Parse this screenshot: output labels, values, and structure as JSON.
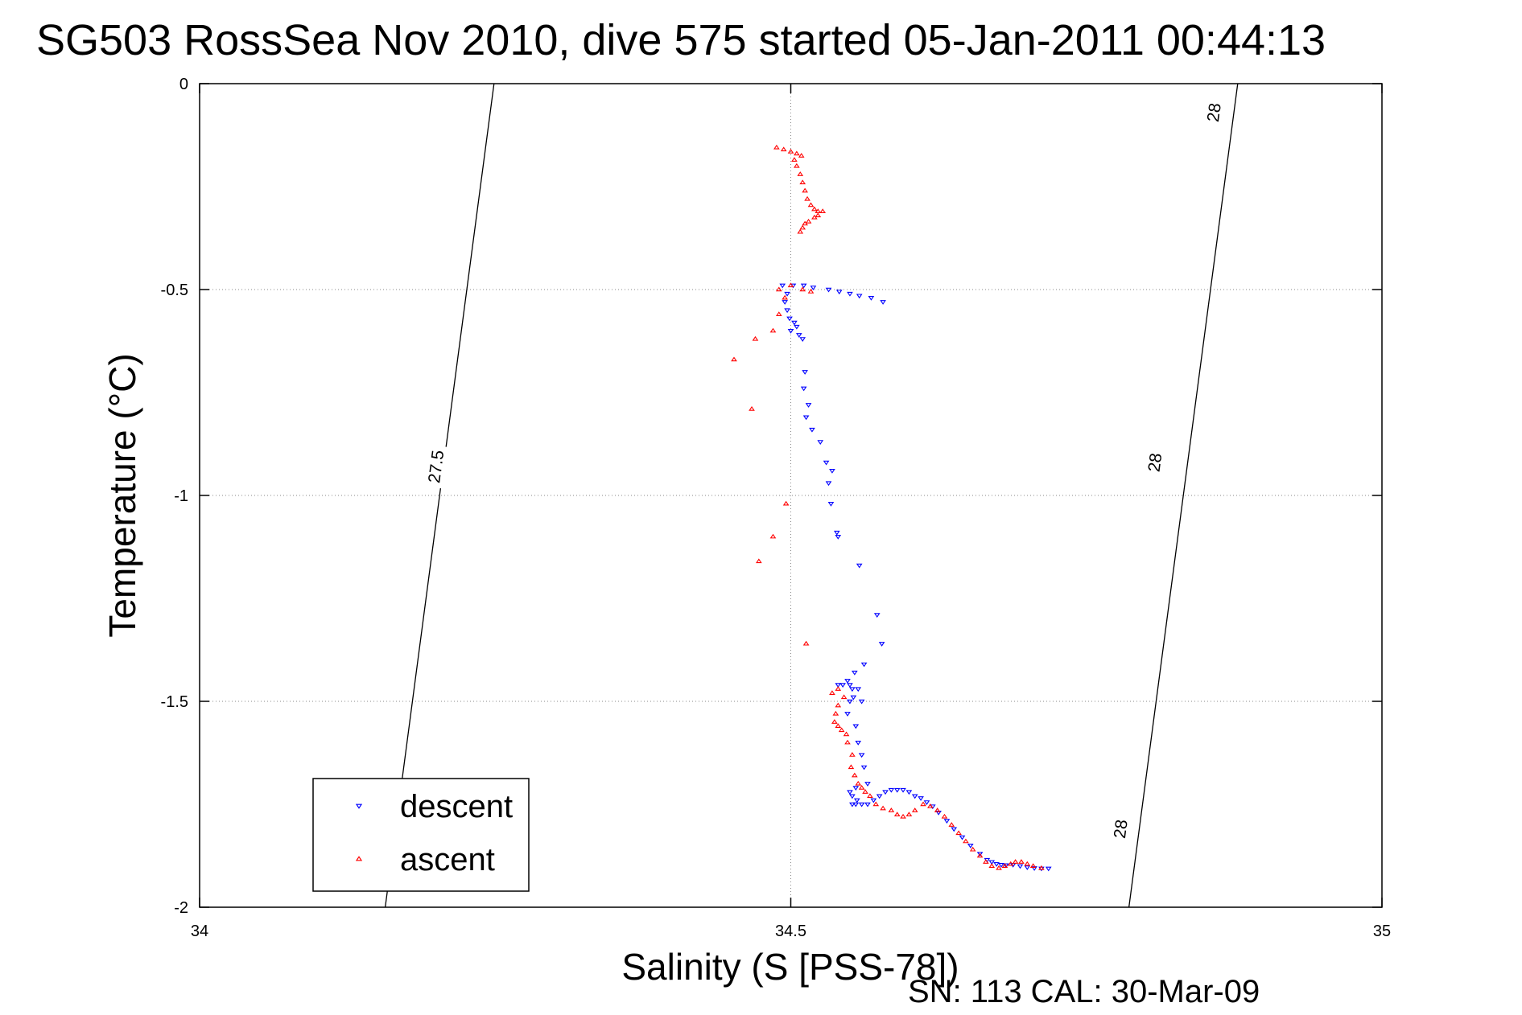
{
  "chart_data": {
    "type": "scatter",
    "title": "SG503 RossSea Nov 2010, dive 575 started 05-Jan-2011 00:44:13",
    "xlabel": "Salinity (S [PSS-78])",
    "ylabel": "Temperature (°C)",
    "xlim": [
      34,
      35
    ],
    "ylim": [
      -2,
      0
    ],
    "x_ticks": [
      "34",
      "34.5",
      "35"
    ],
    "y_ticks": [
      "0",
      "-0.5",
      "-1",
      "-1.5",
      "-2"
    ],
    "grid": true,
    "legend_position": "bottom-left",
    "isopycnals": [
      {
        "label": "27.5",
        "points": [
          [
            34.157,
            -2.0
          ],
          [
            34.249,
            0.0
          ]
        ],
        "label_at": [
          34.2,
          -0.93
        ]
      },
      {
        "label": "28",
        "points": [
          [
            34.786,
            -2.0
          ],
          [
            34.878,
            0.0
          ]
        ],
        "label_positions": [
          [
            34.858,
            -0.07
          ],
          [
            34.808,
            -0.92
          ],
          [
            34.779,
            -1.81
          ]
        ]
      }
    ],
    "series": [
      {
        "name": "descent",
        "color": "#0000ff",
        "marker": "triangle-down",
        "points": [
          [
            34.493,
            -0.49
          ],
          [
            34.502,
            -0.49
          ],
          [
            34.511,
            -0.49
          ],
          [
            34.519,
            -0.495
          ],
          [
            34.532,
            -0.5
          ],
          [
            34.541,
            -0.505
          ],
          [
            34.55,
            -0.51
          ],
          [
            34.558,
            -0.515
          ],
          [
            34.568,
            -0.52
          ],
          [
            34.578,
            -0.53
          ],
          [
            34.497,
            -0.51
          ],
          [
            34.495,
            -0.53
          ],
          [
            34.497,
            -0.55
          ],
          [
            34.499,
            -0.57
          ],
          [
            34.503,
            -0.58
          ],
          [
            34.505,
            -0.59
          ],
          [
            34.507,
            -0.61
          ],
          [
            34.51,
            -0.62
          ],
          [
            34.5,
            -0.6
          ],
          [
            34.512,
            -0.7
          ],
          [
            34.511,
            -0.74
          ],
          [
            34.515,
            -0.78
          ],
          [
            34.513,
            -0.81
          ],
          [
            34.518,
            -0.84
          ],
          [
            34.525,
            -0.87
          ],
          [
            34.53,
            -0.92
          ],
          [
            34.535,
            -0.94
          ],
          [
            34.532,
            -0.97
          ],
          [
            34.534,
            -1.02
          ],
          [
            34.539,
            -1.09
          ],
          [
            34.54,
            -1.1
          ],
          [
            34.558,
            -1.17
          ],
          [
            34.573,
            -1.29
          ],
          [
            34.577,
            -1.36
          ],
          [
            34.562,
            -1.41
          ],
          [
            34.554,
            -1.43
          ],
          [
            34.548,
            -1.45
          ],
          [
            34.55,
            -1.46
          ],
          [
            34.552,
            -1.47
          ],
          [
            34.54,
            -1.46
          ],
          [
            34.544,
            -1.46
          ],
          [
            34.557,
            -1.47
          ],
          [
            34.553,
            -1.49
          ],
          [
            34.55,
            -1.5
          ],
          [
            34.56,
            -1.5
          ],
          [
            34.548,
            -1.53
          ],
          [
            34.555,
            -1.56
          ],
          [
            34.557,
            -1.6
          ],
          [
            34.56,
            -1.63
          ],
          [
            34.562,
            -1.66
          ],
          [
            34.565,
            -1.7
          ],
          [
            34.555,
            -1.71
          ],
          [
            34.55,
            -1.72
          ],
          [
            34.552,
            -1.73
          ],
          [
            34.556,
            -1.74
          ],
          [
            34.552,
            -1.75
          ],
          [
            34.555,
            -1.75
          ],
          [
            34.56,
            -1.75
          ],
          [
            34.565,
            -1.75
          ],
          [
            34.57,
            -1.74
          ],
          [
            34.575,
            -1.73
          ],
          [
            34.58,
            -1.72
          ],
          [
            34.585,
            -1.715
          ],
          [
            34.59,
            -1.715
          ],
          [
            34.595,
            -1.715
          ],
          [
            34.6,
            -1.72
          ],
          [
            34.605,
            -1.73
          ],
          [
            34.61,
            -1.735
          ],
          [
            34.615,
            -1.745
          ],
          [
            34.62,
            -1.755
          ],
          [
            34.625,
            -1.77
          ],
          [
            34.632,
            -1.79
          ],
          [
            34.638,
            -1.81
          ],
          [
            34.645,
            -1.83
          ],
          [
            34.652,
            -1.85
          ],
          [
            34.66,
            -1.87
          ],
          [
            34.666,
            -1.885
          ],
          [
            34.67,
            -1.89
          ],
          [
            34.674,
            -1.895
          ],
          [
            34.678,
            -1.897
          ],
          [
            34.682,
            -1.898
          ],
          [
            34.688,
            -1.897
          ],
          [
            34.694,
            -1.9
          ],
          [
            34.7,
            -1.903
          ],
          [
            34.706,
            -1.905
          ],
          [
            34.712,
            -1.906
          ],
          [
            34.718,
            -1.906
          ]
        ]
      },
      {
        "name": "ascent",
        "color": "#ff0000",
        "marker": "triangle-up",
        "points": [
          [
            34.488,
            -0.155
          ],
          [
            34.494,
            -0.16
          ],
          [
            34.5,
            -0.165
          ],
          [
            34.505,
            -0.17
          ],
          [
            34.509,
            -0.175
          ],
          [
            34.503,
            -0.185
          ],
          [
            34.505,
            -0.2
          ],
          [
            34.508,
            -0.22
          ],
          [
            34.51,
            -0.24
          ],
          [
            34.512,
            -0.26
          ],
          [
            34.514,
            -0.28
          ],
          [
            34.517,
            -0.295
          ],
          [
            34.52,
            -0.305
          ],
          [
            34.523,
            -0.31
          ],
          [
            34.527,
            -0.31
          ],
          [
            34.523,
            -0.32
          ],
          [
            34.52,
            -0.325
          ],
          [
            34.515,
            -0.335
          ],
          [
            34.512,
            -0.34
          ],
          [
            34.51,
            -0.35
          ],
          [
            34.508,
            -0.36
          ],
          [
            34.5,
            -0.49
          ],
          [
            34.51,
            -0.5
          ],
          [
            34.517,
            -0.505
          ],
          [
            34.49,
            -0.5
          ],
          [
            34.495,
            -0.52
          ],
          [
            34.49,
            -0.56
          ],
          [
            34.485,
            -0.6
          ],
          [
            34.47,
            -0.62
          ],
          [
            34.452,
            -0.67
          ],
          [
            34.467,
            -0.79
          ],
          [
            34.496,
            -1.02
          ],
          [
            34.485,
            -1.1
          ],
          [
            34.473,
            -1.16
          ],
          [
            34.513,
            -1.36
          ],
          [
            34.535,
            -1.48
          ],
          [
            34.54,
            -1.47
          ],
          [
            34.545,
            -1.49
          ],
          [
            34.54,
            -1.51
          ],
          [
            34.538,
            -1.53
          ],
          [
            34.537,
            -1.55
          ],
          [
            34.54,
            -1.56
          ],
          [
            34.543,
            -1.57
          ],
          [
            34.547,
            -1.58
          ],
          [
            34.548,
            -1.6
          ],
          [
            34.552,
            -1.63
          ],
          [
            34.551,
            -1.66
          ],
          [
            34.554,
            -1.68
          ],
          [
            34.557,
            -1.7
          ],
          [
            34.56,
            -1.71
          ],
          [
            34.563,
            -1.72
          ],
          [
            34.567,
            -1.73
          ],
          [
            34.572,
            -1.75
          ],
          [
            34.578,
            -1.76
          ],
          [
            34.585,
            -1.765
          ],
          [
            34.59,
            -1.775
          ],
          [
            34.595,
            -1.78
          ],
          [
            34.6,
            -1.775
          ],
          [
            34.605,
            -1.765
          ],
          [
            34.612,
            -1.75
          ],
          [
            34.618,
            -1.755
          ],
          [
            34.624,
            -1.765
          ],
          [
            34.63,
            -1.78
          ],
          [
            34.636,
            -1.8
          ],
          [
            34.642,
            -1.82
          ],
          [
            34.648,
            -1.84
          ],
          [
            34.654,
            -1.86
          ],
          [
            34.66,
            -1.875
          ],
          [
            34.665,
            -1.89
          ],
          [
            34.67,
            -1.9
          ],
          [
            34.676,
            -1.905
          ],
          [
            34.681,
            -1.9
          ],
          [
            34.686,
            -1.895
          ],
          [
            34.69,
            -1.89
          ],
          [
            34.695,
            -1.89
          ],
          [
            34.7,
            -1.895
          ],
          [
            34.705,
            -1.9
          ],
          [
            34.712,
            -1.905
          ]
        ]
      }
    ]
  },
  "footer": {
    "sn_cal": "SN: 113  CAL: 30-Mar-09"
  }
}
